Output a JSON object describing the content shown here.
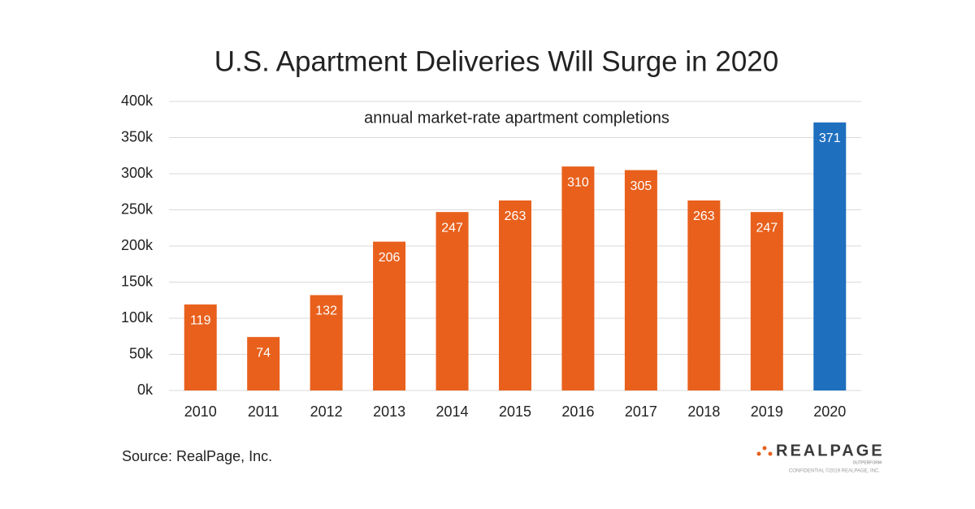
{
  "chart_data": {
    "type": "bar",
    "title": "U.S. Apartment Deliveries Will Surge in 2020",
    "subtitle": "annual market-rate apartment completions",
    "categories": [
      "2010",
      "2011",
      "2012",
      "2013",
      "2014",
      "2015",
      "2016",
      "2017",
      "2018",
      "2019",
      "2020"
    ],
    "values": [
      119000,
      74000,
      132000,
      206000,
      247000,
      263000,
      310000,
      305000,
      263000,
      247000,
      371000
    ],
    "value_labels": [
      "119",
      "74",
      "132",
      "206",
      "247",
      "263",
      "310",
      "305",
      "263",
      "247",
      "371"
    ],
    "colors": [
      "#e8601c",
      "#e8601c",
      "#e8601c",
      "#e8601c",
      "#e8601c",
      "#e8601c",
      "#e8601c",
      "#e8601c",
      "#e8601c",
      "#e8601c",
      "#1f6fbf"
    ],
    "ylim": [
      0,
      400000
    ],
    "yticks": [
      {
        "value": 0,
        "label": "0k"
      },
      {
        "value": 50000,
        "label": "50k"
      },
      {
        "value": 100000,
        "label": "100k"
      },
      {
        "value": 150000,
        "label": "150k"
      },
      {
        "value": 200000,
        "label": "200k"
      },
      {
        "value": 250000,
        "label": "250k"
      },
      {
        "value": 300000,
        "label": "300k"
      },
      {
        "value": 350000,
        "label": "350k"
      },
      {
        "value": 400000,
        "label": "400k"
      }
    ],
    "grid": true,
    "source": "Source: RealPage, Inc.",
    "logo": {
      "name": "REALPAGE",
      "tagline": "OUTPERFORM",
      "notice": "CONFIDENTIAL ©2019 REALPAGE, INC."
    }
  }
}
